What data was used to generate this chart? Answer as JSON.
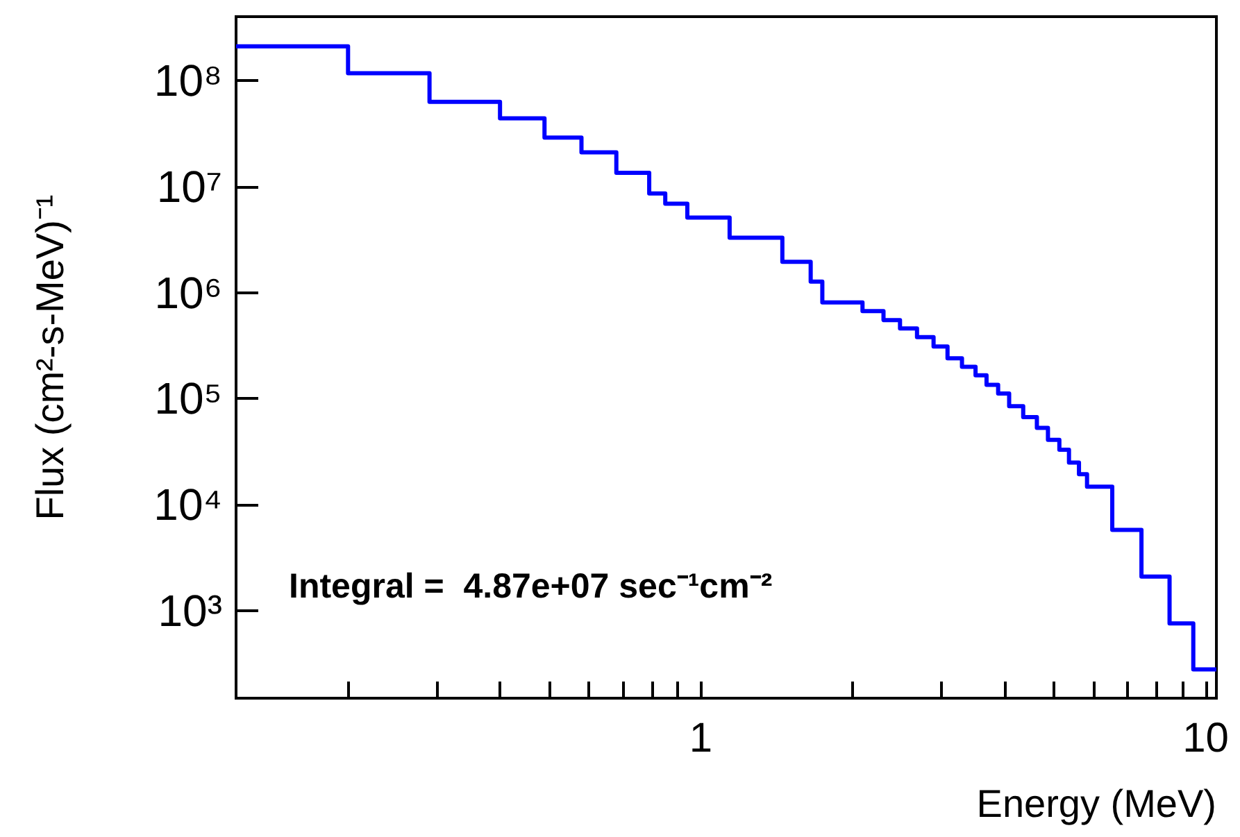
{
  "chart_data": {
    "type": "histogram",
    "xlabel": "Energy (MeV)",
    "ylabel": "Flux (cm²-s-MeV)⁻¹",
    "color": "#0000ff",
    "log": "xy",
    "grid": false,
    "annotations": [
      "Integral =  4.87e+07 sec⁻¹cm⁻²"
    ],
    "bins": [
      0.12,
      0.2,
      0.29,
      0.4,
      0.49,
      0.58,
      0.68,
      0.79,
      0.85,
      0.94,
      1.14,
      1.45,
      1.65,
      1.74,
      2.09,
      2.3,
      2.48,
      2.68,
      2.89,
      3.08,
      3.29,
      3.5,
      3.68,
      3.88,
      4.08,
      4.35,
      4.63,
      4.87,
      5.13,
      5.36,
      5.61,
      5.82,
      6.53,
      7.46,
      8.48,
      9.45,
      10.5
    ],
    "values": [
      210000000,
      117000000,
      63000000,
      44000000,
      29000000,
      21000000,
      13500000,
      8600000,
      6900000,
      5100000,
      3300000,
      1950000,
      1270000,
      810000,
      670000,
      550000,
      460000,
      380000,
      310000,
      240000,
      200000,
      166000,
      135000,
      112000,
      85000,
      67000,
      53000,
      41000,
      33000,
      25000,
      19400,
      14800,
      5800,
      2100,
      760,
      280
    ],
    "xlim": [
      0.12,
      10.5
    ],
    "xticks": [
      {
        "value": 0.2,
        "label": null
      },
      {
        "value": 0.3,
        "label": null
      },
      {
        "value": 0.4,
        "label": null
      },
      {
        "value": 0.5,
        "label": null
      },
      {
        "value": 0.6,
        "label": null
      },
      {
        "value": 0.7,
        "label": null
      },
      {
        "value": 0.8,
        "label": null
      },
      {
        "value": 0.9,
        "label": null
      },
      1,
      {
        "value": 2,
        "label": null
      },
      {
        "value": 3,
        "label": null
      },
      {
        "value": 4,
        "label": null
      },
      {
        "value": 5,
        "label": null
      },
      {
        "value": 6,
        "label": null
      },
      {
        "value": 7,
        "label": null
      },
      {
        "value": 8,
        "label": null
      },
      {
        "value": 9,
        "label": null
      },
      10
    ],
    "ylim": [
      150,
      400000000
    ],
    "yticks": [
      {
        "value": 1000,
        "label": "10³"
      },
      {
        "value": 10000,
        "label": "10⁴"
      },
      {
        "value": 100000,
        "label": "10⁵"
      },
      {
        "value": 1000000,
        "label": "10⁶"
      },
      {
        "value": 10000000,
        "label": "10⁷"
      },
      {
        "value": 100000000,
        "label": "10⁸"
      }
    ]
  }
}
